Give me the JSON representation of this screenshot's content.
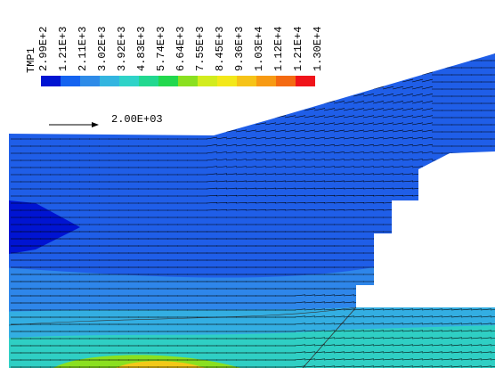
{
  "legend": {
    "title": "TMP1",
    "labels": [
      "2.99E+2",
      "1.21E+3",
      "2.11E+3",
      "3.02E+3",
      "3.92E+3",
      "4.83E+3",
      "5.74E+3",
      "6.64E+3",
      "7.55E+3",
      "8.45E+3",
      "9.36E+3",
      "1.03E+4",
      "1.12E+4",
      "1.21E+4",
      "1.30E+4"
    ],
    "colors": [
      "#0014d2",
      "#1463f0",
      "#2e8be8",
      "#33b5e0",
      "#2fd3c8",
      "#22d890",
      "#22d84e",
      "#8ae020",
      "#d2ec1e",
      "#f3e81a",
      "#f6c318",
      "#f79a14",
      "#f46a12",
      "#f0141a"
    ]
  },
  "reference_vector": {
    "label": "2.00E+03"
  }
}
